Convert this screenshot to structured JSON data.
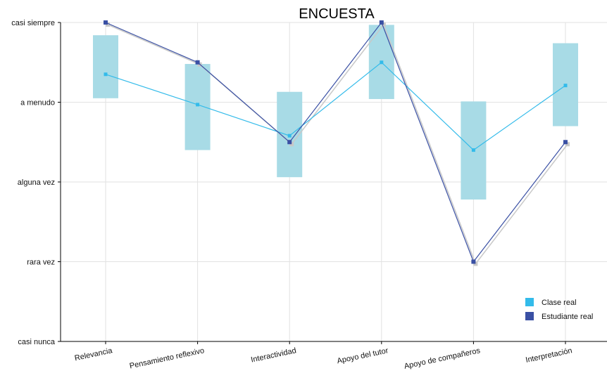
{
  "chart_data": {
    "type": "line",
    "title": "ENCUESTA",
    "xlabel": "",
    "ylabel": "",
    "categories": [
      "Relevancia",
      "Pensamiento reflexivo",
      "Interactividad",
      "Apoyo del tutor",
      "Apoyo de compañeros",
      "Interpretación"
    ],
    "y_tick_labels": [
      "casi nunca",
      "rara vez",
      "alguna vez",
      "a menudo",
      "casi siempre"
    ],
    "ylim": [
      1,
      5
    ],
    "grid": true,
    "legend_position": "bottom-right",
    "ranges": {
      "color": "#a8dbe6",
      "low": [
        4.05,
        3.4,
        3.06,
        4.04,
        2.78,
        3.7
      ],
      "high": [
        4.84,
        4.48,
        4.13,
        4.97,
        4.01,
        4.74
      ]
    },
    "series": [
      {
        "name": "Clase real",
        "color": "#33bbea",
        "values": [
          4.35,
          3.97,
          3.58,
          4.5,
          3.4,
          4.21
        ]
      },
      {
        "name": "Estudiante real",
        "color": "#3a50a4",
        "values": [
          5.0,
          4.5,
          3.5,
          5.0,
          2.0,
          3.5
        ]
      }
    ],
    "shadow_color": "#c8c8c8"
  }
}
